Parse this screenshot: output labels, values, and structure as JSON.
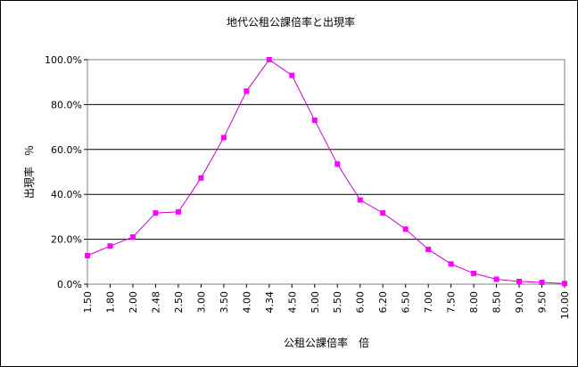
{
  "chart_data": {
    "type": "line",
    "title": "地代公租公課倍率と出現率",
    "xlabel": "公租公課倍率　倍",
    "ylabel": "出現率　％",
    "categories": [
      "1.50",
      "1.80",
      "2.00",
      "2.48",
      "2.50",
      "3.00",
      "3.50",
      "4.00",
      "4.34",
      "4.50",
      "5.00",
      "5.50",
      "6.00",
      "6.20",
      "6.50",
      "7.00",
      "7.50",
      "8.00",
      "8.50",
      "9.00",
      "9.50",
      "10.00"
    ],
    "series": [
      {
        "values": [
          12.7,
          17.0,
          21.0,
          31.7,
          32.2,
          47.3,
          65.3,
          86.0,
          100.0,
          93.0,
          73.0,
          53.5,
          37.5,
          31.7,
          24.5,
          15.5,
          9.0,
          4.8,
          2.2,
          1.2,
          0.8,
          0.3
        ]
      }
    ],
    "y_ticks": [
      "0.0%",
      "20.0%",
      "40.0%",
      "60.0%",
      "80.0%",
      "100.0%"
    ],
    "ylim": [
      0,
      100
    ],
    "grid": "horizontal",
    "line_color": "#CC00CC",
    "marker_color": "#FF00FF",
    "plot_background": "#FFFFFF"
  }
}
